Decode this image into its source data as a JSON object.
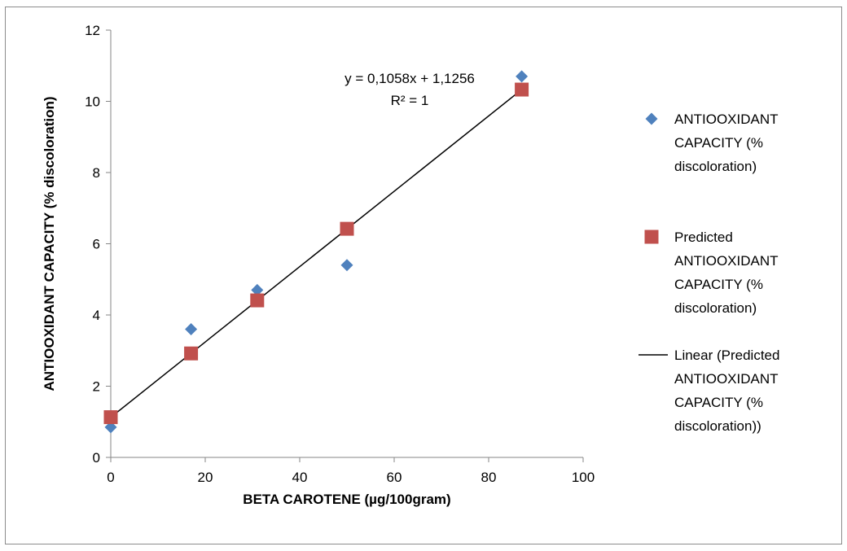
{
  "chart_data": {
    "type": "scatter",
    "xlabel": "BETA CAROTENE (µg/100gram)",
    "ylabel": "ANTIOOXIDANT CAPACITY (% discoloration)",
    "xlim": [
      0,
      100
    ],
    "ylim": [
      0,
      12
    ],
    "xticks": [
      "0",
      "20",
      "40",
      "60",
      "80",
      "100"
    ],
    "yticks": [
      "0",
      "2",
      "4",
      "6",
      "8",
      "10",
      "12"
    ],
    "grid": false,
    "legend_position": "right",
    "series": [
      {
        "name": "ANTIOOXIDANT CAPACITY (% discoloration)",
        "marker": "diamond",
        "color": "#4f81bd",
        "points": [
          [
            0,
            0.85
          ],
          [
            17,
            3.6
          ],
          [
            31,
            4.7
          ],
          [
            50,
            5.4
          ],
          [
            87,
            10.7
          ]
        ]
      },
      {
        "name": "Predicted ANTIOOXIDANT CAPACITY (% discoloration)",
        "marker": "square",
        "color": "#c0504d",
        "points": [
          [
            0,
            1.13
          ],
          [
            17,
            2.92
          ],
          [
            31,
            4.41
          ],
          [
            50,
            6.42
          ],
          [
            87,
            10.33
          ]
        ]
      }
    ],
    "trendline": {
      "name": "Linear (Predicted ANTIOOXIDANT CAPACITY (% discoloration))",
      "color": "#000000",
      "slope": 0.1058,
      "intercept": 1.1256,
      "x_range": [
        0,
        87
      ],
      "equation_label": "y = 0,1058x + 1,1256",
      "r2_label": "R² = 1"
    },
    "legend_lines": [
      [
        "ANTIOOXIDANT",
        "CAPACITY (%",
        "discoloration)"
      ],
      [
        "Predicted",
        "ANTIOOXIDANT",
        "CAPACITY (%",
        "discoloration)"
      ],
      [
        "Linear (Predicted",
        "ANTIOOXIDANT",
        "CAPACITY (%",
        "discoloration))"
      ]
    ]
  }
}
